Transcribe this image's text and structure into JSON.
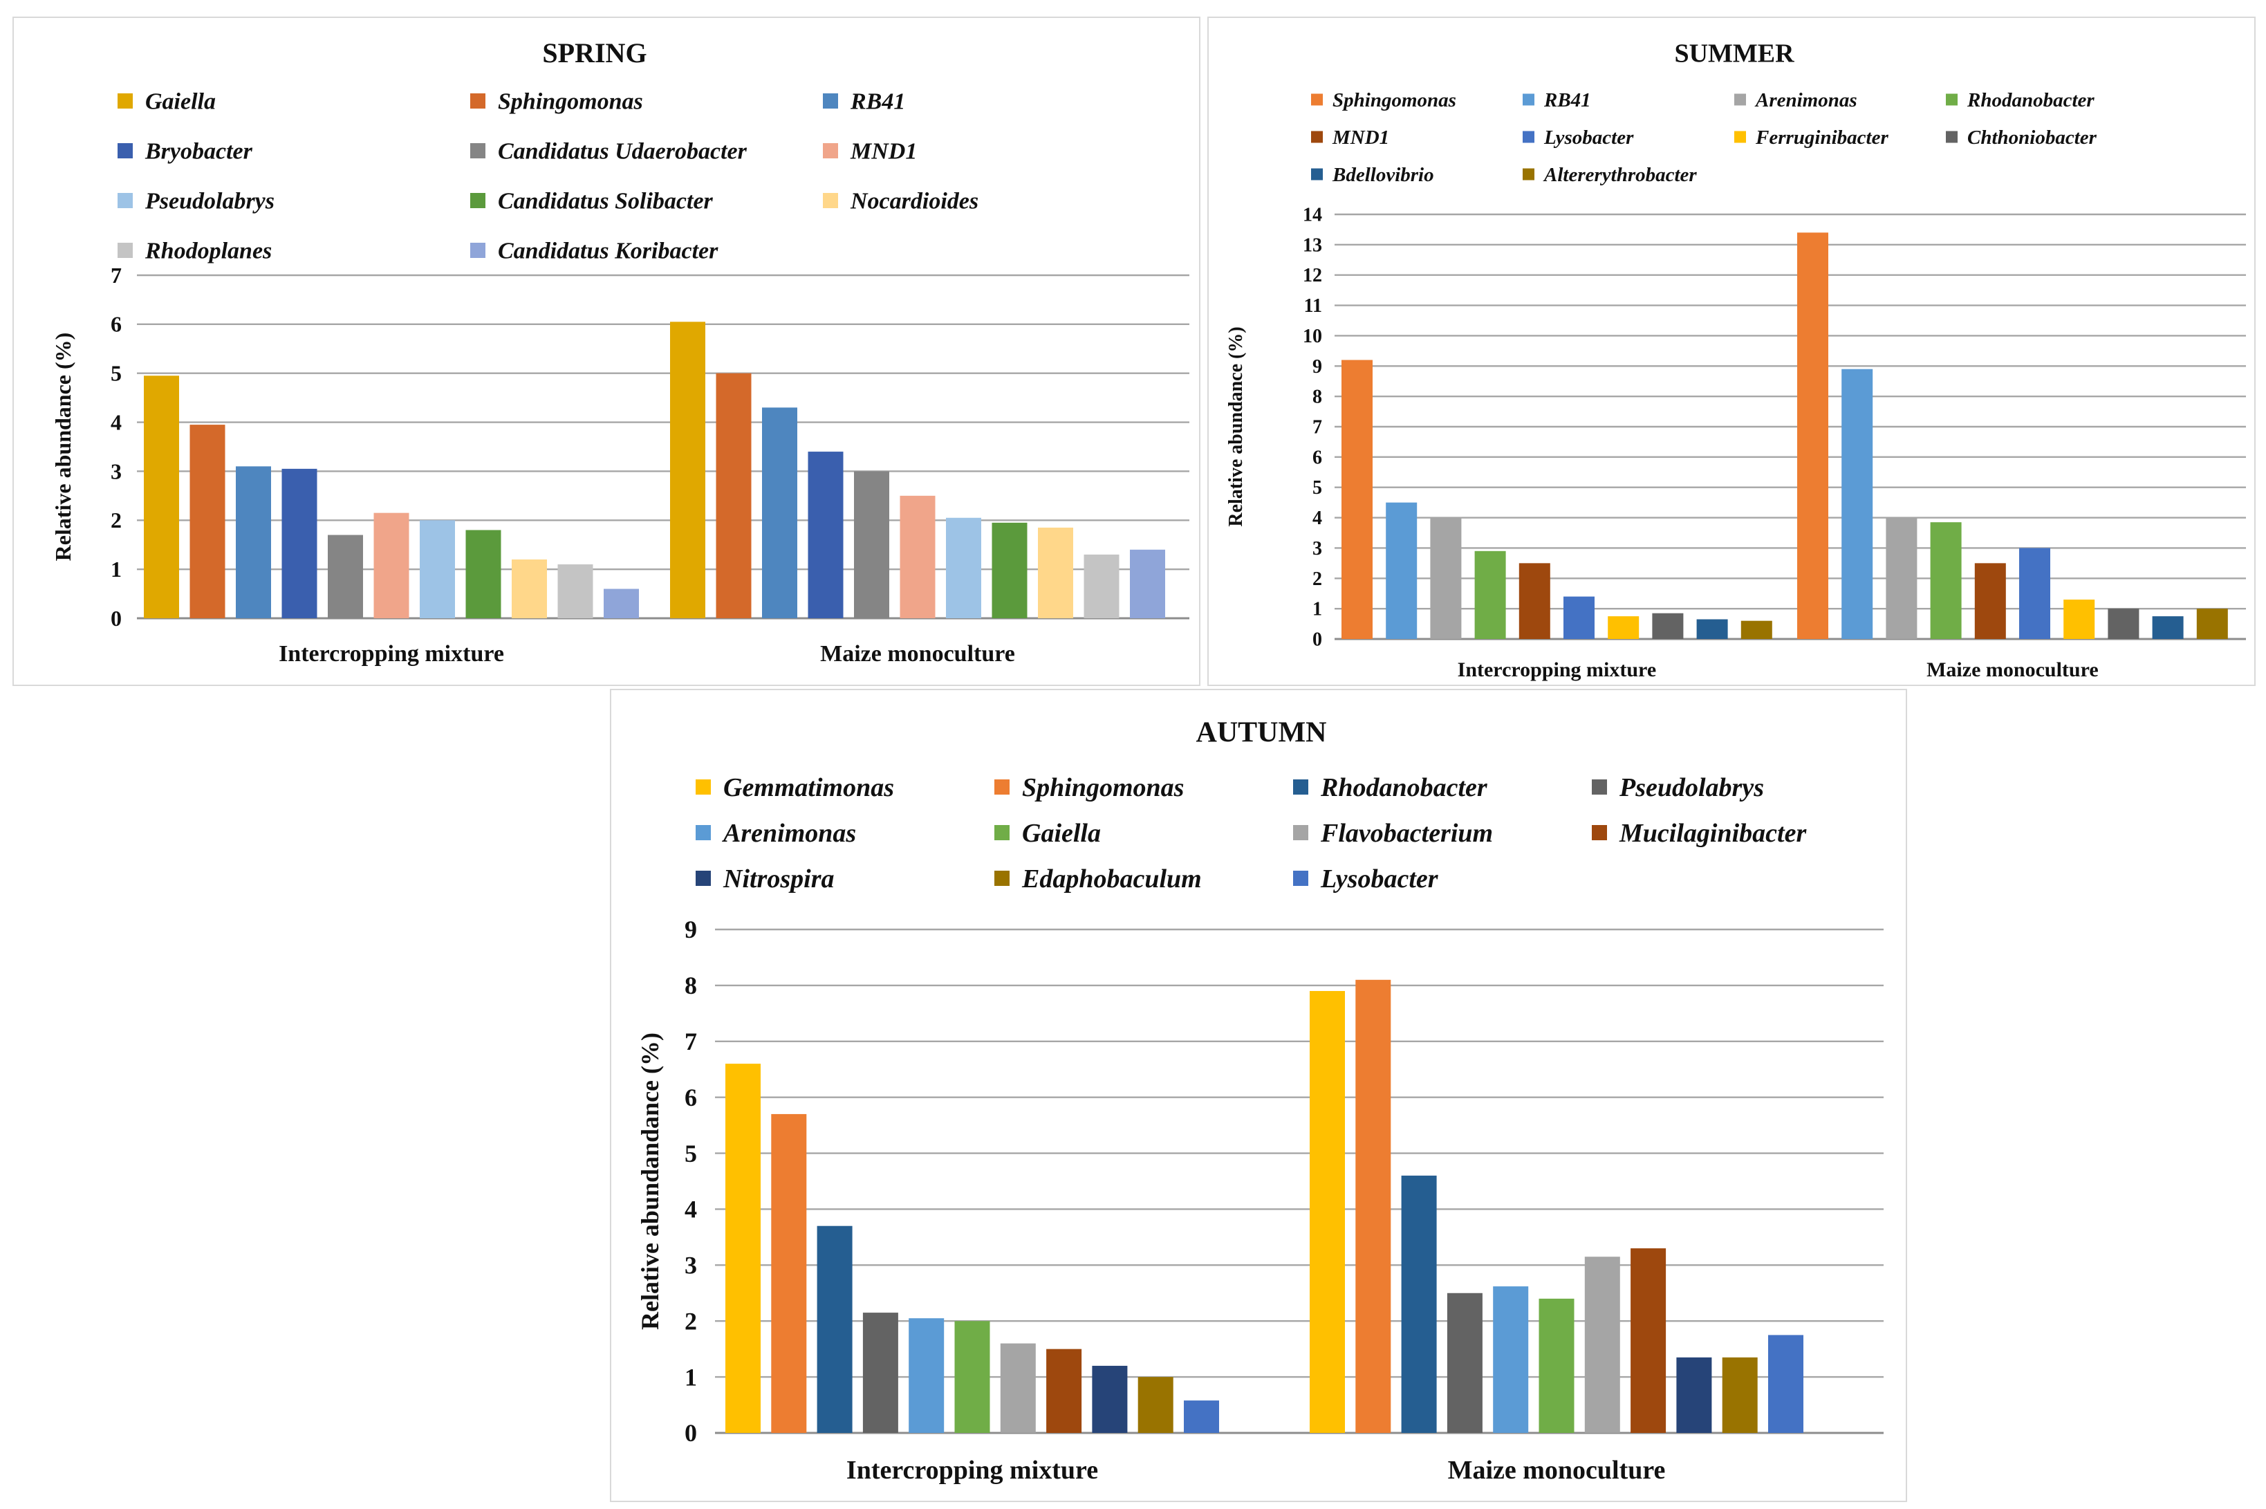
{
  "chart_data": [
    {
      "id": "spring",
      "type": "bar",
      "title": "SPRING",
      "xlabel": "",
      "ylabel": "Relative abundance (%)",
      "ylim": [
        0,
        7
      ],
      "ytick_step": 1,
      "grid": true,
      "legend_position": "top",
      "categories": [
        "Intercropping mixture",
        "Maize monoculture"
      ],
      "series": [
        {
          "name": "Gaiella",
          "color": "#E0A800",
          "values": [
            4.95,
            6.05
          ]
        },
        {
          "name": "Sphingomonas",
          "color": "#D4692A",
          "values": [
            3.95,
            5.0
          ]
        },
        {
          "name": "RB41",
          "color": "#4E86BF",
          "values": [
            3.1,
            4.3
          ]
        },
        {
          "name": "Bryobacter",
          "color": "#3A5FAE",
          "values": [
            3.05,
            3.4
          ]
        },
        {
          "name": "Candidatus Udaerobacter",
          "color": "#858585",
          "values": [
            1.7,
            3.0
          ]
        },
        {
          "name": "MND1",
          "color": "#F0A58A",
          "values": [
            2.15,
            2.5
          ]
        },
        {
          "name": "Pseudolabrys",
          "color": "#9DC3E6",
          "values": [
            2.0,
            2.05
          ]
        },
        {
          "name": "Candidatus Solibacter",
          "color": "#5B9A3C",
          "values": [
            1.8,
            1.95
          ]
        },
        {
          "name": "Nocardioides",
          "color": "#FFD78A",
          "values": [
            1.2,
            1.85
          ]
        },
        {
          "name": "Rhodoplanes",
          "color": "#C4C4C4",
          "values": [
            1.1,
            1.3
          ]
        },
        {
          "name": "Candidatus Koribacter",
          "color": "#8FA5D9",
          "values": [
            0.6,
            1.4
          ]
        }
      ]
    },
    {
      "id": "summer",
      "type": "bar",
      "title": "SUMMER",
      "xlabel": "",
      "ylabel": "Relative abundance (%)",
      "ylim": [
        0,
        14
      ],
      "ytick_step": 1,
      "grid": true,
      "legend_position": "top",
      "categories": [
        "Intercropping mixture",
        "Maize monoculture"
      ],
      "series": [
        {
          "name": "Sphingomonas",
          "color": "#ED7D31",
          "values": [
            9.2,
            13.4
          ]
        },
        {
          "name": "RB41",
          "color": "#5B9BD5",
          "values": [
            4.5,
            8.9
          ]
        },
        {
          "name": "Arenimonas",
          "color": "#A5A5A5",
          "values": [
            4.0,
            4.0
          ]
        },
        {
          "name": "Rhodanobacter",
          "color": "#70AD47",
          "values": [
            2.9,
            3.85
          ]
        },
        {
          "name": "MND1",
          "color": "#9E480E",
          "values": [
            2.5,
            2.5
          ]
        },
        {
          "name": "Lysobacter",
          "color": "#4472C4",
          "values": [
            1.4,
            3.0
          ]
        },
        {
          "name": "Ferruginibacter",
          "color": "#FFC000",
          "values": [
            0.75,
            1.3
          ]
        },
        {
          "name": "Chthoniobacter",
          "color": "#636363",
          "values": [
            0.85,
            1.0
          ]
        },
        {
          "name": "Bdellovibrio",
          "color": "#255E91",
          "values": [
            0.65,
            0.75
          ]
        },
        {
          "name": "Altererythrobacter",
          "color": "#997300",
          "values": [
            0.6,
            1.0
          ]
        }
      ]
    },
    {
      "id": "autumn",
      "type": "bar",
      "title": "AUTUMN",
      "xlabel": "",
      "ylabel": "Relative abundandance (%)",
      "ylim": [
        0,
        9
      ],
      "ytick_step": 1,
      "grid": true,
      "legend_position": "top",
      "categories": [
        "Intercropping mixture",
        "Maize monoculture"
      ],
      "series": [
        {
          "name": "Gemmatimonas",
          "color": "#FFC000",
          "values": [
            6.6,
            7.9
          ]
        },
        {
          "name": "Sphingomonas",
          "color": "#ED7D31",
          "values": [
            5.7,
            8.1
          ]
        },
        {
          "name": "Rhodanobacter",
          "color": "#255E91",
          "values": [
            3.7,
            4.6
          ]
        },
        {
          "name": "Pseudolabrys",
          "color": "#636363",
          "values": [
            2.15,
            2.5
          ]
        },
        {
          "name": "Arenimonas",
          "color": "#5B9BD5",
          "values": [
            2.05,
            2.62
          ]
        },
        {
          "name": "Gaiella",
          "color": "#70AD47",
          "values": [
            2.0,
            2.4
          ]
        },
        {
          "name": "Flavobacterium",
          "color": "#A5A5A5",
          "values": [
            1.6,
            3.15
          ]
        },
        {
          "name": "Mucilaginibacter",
          "color": "#9E480E",
          "values": [
            1.5,
            3.3
          ]
        },
        {
          "name": "Nitrospira",
          "color": "#264478",
          "values": [
            1.2,
            1.35
          ]
        },
        {
          "name": "Edaphobaculum",
          "color": "#997300",
          "values": [
            1.0,
            1.35
          ]
        },
        {
          "name": "Lysobacter",
          "color": "#4472C4",
          "values": [
            0.58,
            1.75
          ]
        }
      ]
    }
  ]
}
